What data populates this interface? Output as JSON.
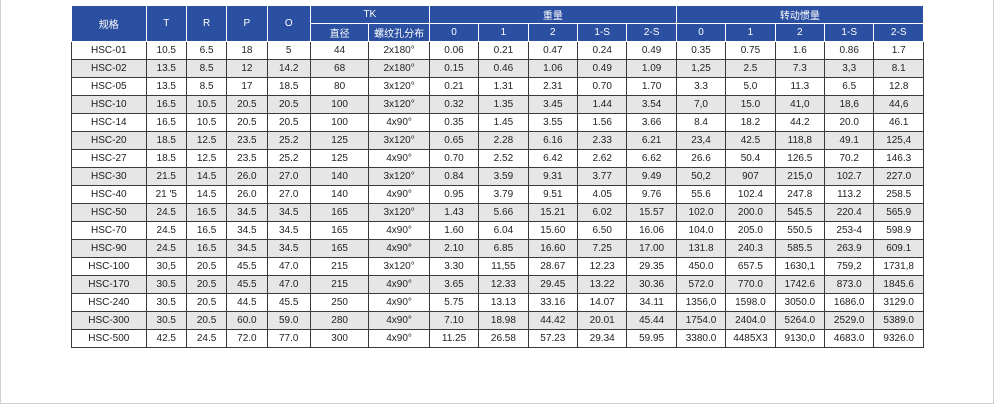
{
  "header": {
    "model": "规格",
    "T": "T",
    "R": "R",
    "P": "P",
    "O": "O",
    "tk": "TK",
    "tk_sub": [
      "直径",
      "螺纹孔分布"
    ],
    "weight": "重量",
    "weight_sub": [
      "0",
      "1",
      "2",
      "1-S",
      "2-S"
    ],
    "inertia": "转动惯量",
    "inertia_sub": [
      "0",
      "1",
      "2",
      "1-S",
      "2-S"
    ]
  },
  "rows": [
    [
      "HSC-01",
      "10.5",
      "6.5",
      "18",
      "5",
      "44",
      "2x180°",
      "0.06",
      "0.21",
      "0.47",
      "0.24",
      "0.49",
      "0.35",
      "0.75",
      "1.6",
      "0.86",
      "1.7"
    ],
    [
      "HSC-02",
      "13.5",
      "8.5",
      "12",
      "14.2",
      "68",
      "2x180°",
      "0.15",
      "0.46",
      "1.06",
      "0.49",
      "1.09",
      "1,25",
      "2.5",
      "7.3",
      "3,3",
      "8.1"
    ],
    [
      "HSC-05",
      "13.5",
      "8.5",
      "17",
      "18.5",
      "80",
      "3x120°",
      "0.21",
      "1.31",
      "2.31",
      "0.70",
      "1.70",
      "3.3",
      "5.0",
      "11.3",
      "6.5",
      "12.8"
    ],
    [
      "HSC-10",
      "16.5",
      "10.5",
      "20.5",
      "20.5",
      "100",
      "3x120°",
      "0.32",
      "1.35",
      "3.45",
      "1.44",
      "3.54",
      "7,0",
      "15.0",
      "41,0",
      "18,6",
      "44,6"
    ],
    [
      "HSC-14",
      "16.5",
      "10.5",
      "20.5",
      "20.5",
      "100",
      "4x90°",
      "0.35",
      "1.45",
      "3.55",
      "1.56",
      "3.66",
      "8.4",
      "18.2",
      "44.2",
      "20.0",
      "46.1"
    ],
    [
      "HSC-20",
      "18.5",
      "12.5",
      "23.5",
      "25.2",
      "125",
      "3x120°",
      "0.65",
      "2.28",
      "6.16",
      "2.33",
      "6.21",
      "23,4",
      "42.5",
      "118,8",
      "49.1",
      "125,4"
    ],
    [
      "HSC-27",
      "18.5",
      "12.5",
      "23.5",
      "25.2",
      "125",
      "4x90°",
      "0.70",
      "2.52",
      "6.42",
      "2.62",
      "6.62",
      "26.6",
      "50.4",
      "126.5",
      "70.2",
      "146.3"
    ],
    [
      "HSC-30",
      "21.5",
      "14.5",
      "26.0",
      "27.0",
      "140",
      "3x120°",
      "0.84",
      "3.59",
      "9.31",
      "3.77",
      "9.49",
      "50,2",
      "907",
      "215,0",
      "102.7",
      "227.0"
    ],
    [
      "HSC-40",
      "21 '5",
      "14.5",
      "26.0",
      "27.0",
      "140",
      "4x90°",
      "0.95",
      "3.79",
      "9.51",
      "4.05",
      "9.76",
      "55.6",
      "102.4",
      "247.8",
      "113.2",
      "258.5"
    ],
    [
      "HSC-50",
      "24.5",
      "16.5",
      "34.5",
      "34.5",
      "165",
      "3x120°",
      "1.43",
      "5.66",
      "15.21",
      "6.02",
      "15.57",
      "102.0",
      "200.0",
      "545.5",
      "220.4",
      "565.9"
    ],
    [
      "HSC-70",
      "24.5",
      "16.5",
      "34.5",
      "34.5",
      "165",
      "4x90°",
      "1.60",
      "6.04",
      "15.60",
      "6.50",
      "16.06",
      "104.0",
      "205.0",
      "550.5",
      "253-4",
      "598.9"
    ],
    [
      "HSC-90",
      "24.5",
      "16.5",
      "34.5",
      "34.5",
      "165",
      "4x90°",
      "2.10",
      "6.85",
      "16.60",
      "7.25",
      "17.00",
      "131.8",
      "240.3",
      "585.5",
      "263.9",
      "609.1"
    ],
    [
      "HSC-100",
      "30,5",
      "20.5",
      "45.5",
      "47.0",
      "215",
      "3x120°",
      "3.30",
      "11,55",
      "28.67",
      "12.23",
      "29.35",
      "450.0",
      "657.5",
      "1630,1",
      "759,2",
      "1731,8"
    ],
    [
      "HSC-170",
      "30.5",
      "20.5",
      "45.5",
      "47.0",
      "215",
      "4x90°",
      "3.65",
      "12.33",
      "29.45",
      "13.22",
      "30.36",
      "572.0",
      "770.0",
      "1742.6",
      "873.0",
      "1845.6"
    ],
    [
      "HSC-240",
      "30.5",
      "20.5",
      "44.5",
      "45.5",
      "250",
      "4x90°",
      "5.75",
      "13.13",
      "33.16",
      "14.07",
      "34.11",
      "1356,0",
      "1598.0",
      "3050.0",
      "1686.0",
      "3129.0"
    ],
    [
      "HSC-300",
      "30.5",
      "20.5",
      "60.0",
      "59.0",
      "280",
      "4x90°",
      "7.10",
      "18.98",
      "44.42",
      "20.01",
      "45.44",
      "1754.0",
      "2404.0",
      "5264.0",
      "2529.0",
      "5389.0"
    ],
    [
      "HSC-500",
      "42.5",
      "24.5",
      "72.0",
      "77.0",
      "300",
      "4x90°",
      "11.25",
      "26.58",
      "57.23",
      "29.34",
      "59.95",
      "3380.0",
      "4485X3",
      "9130,0",
      "4683.0",
      "9326.0"
    ]
  ]
}
